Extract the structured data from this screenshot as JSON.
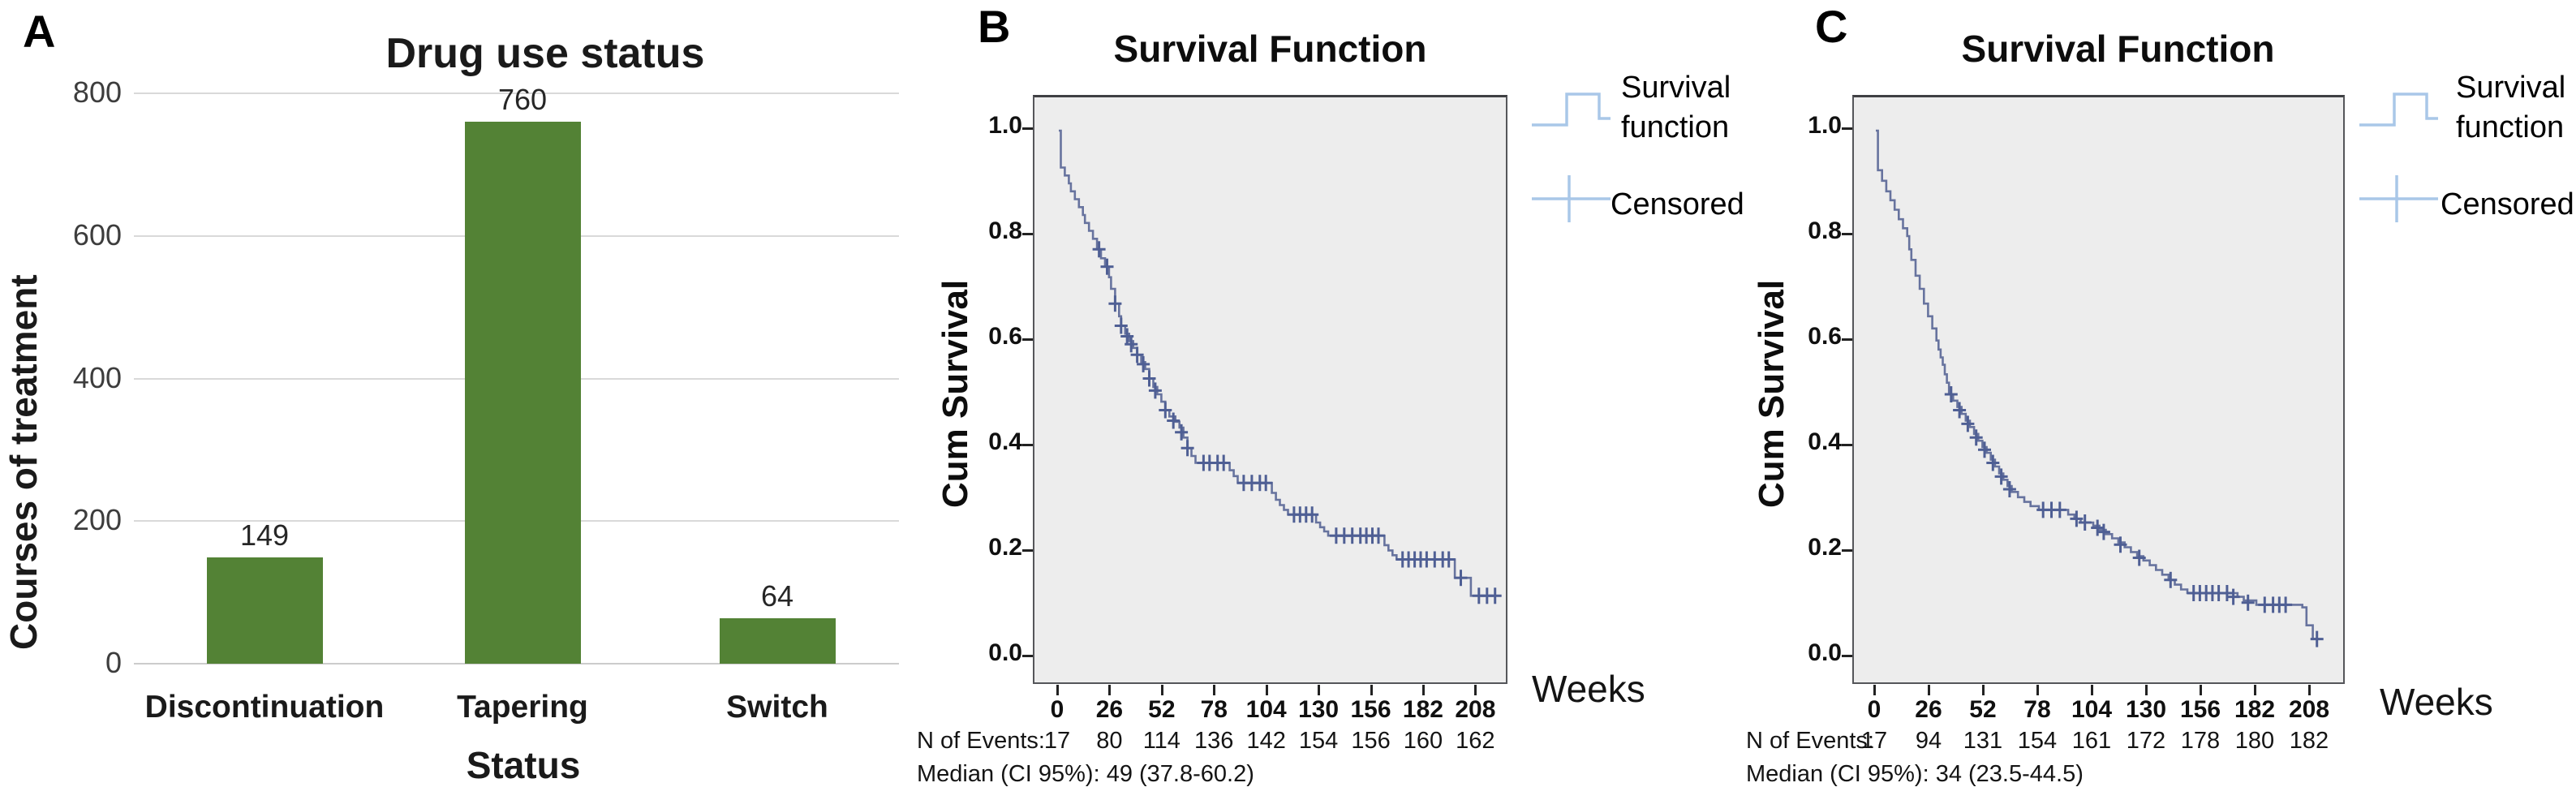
{
  "colors": {
    "bar": "#538235",
    "grid": "#d9d9d9",
    "plot_bg": "#ededed",
    "plot_border": "#55565a",
    "curve": "#67739e",
    "censor": "#4f5f94",
    "legend_icon": "#a9c7e8"
  },
  "panel_a": {
    "label": "A",
    "title": "Drug use status",
    "y_axis_label": "Courses of treatment",
    "x_axis_label": "Status"
  },
  "panel_b": {
    "label": "B",
    "title": "Survival Function",
    "y_axis_label": "Cum Survival",
    "x_axis_label": "Weeks",
    "legend_survival": "Survival function",
    "legend_censored": "Censored",
    "n_of_events_label": "N of Events:",
    "median_label": "Median (CI 95%): 49 (37.8-60.2)"
  },
  "panel_c": {
    "label": "C",
    "title": "Survival Function",
    "y_axis_label": "Cum Survival",
    "x_axis_label": "Weeks",
    "legend_survival": "Survival function",
    "legend_censored": "Censored",
    "n_of_events_label": "N of Events:",
    "median_label": "Median (CI 95%): 34 (23.5-44.5)"
  },
  "chart_data": [
    {
      "type": "bar",
      "panel": "A",
      "title": "Drug use status",
      "xlabel": "Status",
      "ylabel": "Courses of treatment",
      "categories": [
        "Discontinuation",
        "Tapering",
        "Switch"
      ],
      "values": [
        149,
        760,
        64
      ],
      "y_ticks": [
        800,
        600,
        400,
        200,
        0
      ],
      "ylim": [
        0,
        800
      ],
      "grid": true,
      "legend": false
    },
    {
      "type": "line",
      "subtype": "kaplan-meier-step",
      "panel": "B",
      "title": "Survival Function",
      "xlabel": "Weeks",
      "ylabel": "Cum Survival",
      "xlim": [
        0,
        224
      ],
      "ylim": [
        0.0,
        1.05
      ],
      "x_ticks": [
        0,
        26,
        52,
        78,
        104,
        130,
        156,
        182,
        208
      ],
      "y_ticks": [
        "1.0",
        "0.8",
        "0.6",
        "0.4",
        "0.2",
        "0.0"
      ],
      "legend_entries": [
        "Survival function",
        "Censored"
      ],
      "legend_position": "right",
      "n_of_events": [
        17,
        80,
        114,
        136,
        142,
        154,
        156,
        160,
        162
      ],
      "median_weeks": 49,
      "median_ci95": "37.8-60.2",
      "steps": [
        [
          0,
          1.0
        ],
        [
          1,
          0.93
        ],
        [
          3,
          0.915
        ],
        [
          5,
          0.9
        ],
        [
          6,
          0.885
        ],
        [
          8,
          0.87
        ],
        [
          10,
          0.855
        ],
        [
          12,
          0.84
        ],
        [
          13,
          0.825
        ],
        [
          15,
          0.81
        ],
        [
          17,
          0.795
        ],
        [
          19,
          0.775
        ],
        [
          21,
          0.758
        ],
        [
          23,
          0.742
        ],
        [
          25,
          0.722
        ],
        [
          26,
          0.7
        ],
        [
          28,
          0.672
        ],
        [
          30,
          0.648
        ],
        [
          31,
          0.63
        ],
        [
          33,
          0.615
        ],
        [
          35,
          0.601
        ],
        [
          37,
          0.588
        ],
        [
          39,
          0.575
        ],
        [
          41,
          0.561
        ],
        [
          43,
          0.548
        ],
        [
          45,
          0.53
        ],
        [
          47,
          0.514
        ],
        [
          49,
          0.5
        ],
        [
          51,
          0.486
        ],
        [
          53,
          0.47
        ],
        [
          55,
          0.458
        ],
        [
          58,
          0.448
        ],
        [
          60,
          0.437
        ],
        [
          62,
          0.418
        ],
        [
          64,
          0.398
        ],
        [
          66,
          0.383
        ],
        [
          68,
          0.37
        ],
        [
          85,
          0.356
        ],
        [
          87,
          0.345
        ],
        [
          89,
          0.332
        ],
        [
          106,
          0.313
        ],
        [
          108,
          0.3
        ],
        [
          110,
          0.29
        ],
        [
          112,
          0.281
        ],
        [
          114,
          0.272
        ],
        [
          128,
          0.257
        ],
        [
          130,
          0.248
        ],
        [
          132,
          0.24
        ],
        [
          134,
          0.232
        ],
        [
          162,
          0.214
        ],
        [
          164,
          0.204
        ],
        [
          166,
          0.195
        ],
        [
          168,
          0.187
        ],
        [
          197,
          0.152
        ],
        [
          205,
          0.118
        ],
        [
          220,
          0.118
        ]
      ],
      "censored": [
        [
          20,
          0.775
        ],
        [
          24,
          0.742
        ],
        [
          28,
          0.672
        ],
        [
          31,
          0.63
        ],
        [
          34,
          0.61
        ],
        [
          36,
          0.595
        ],
        [
          39,
          0.575
        ],
        [
          42,
          0.557
        ],
        [
          45,
          0.53
        ],
        [
          48,
          0.507
        ],
        [
          53,
          0.47
        ],
        [
          57,
          0.45
        ],
        [
          61,
          0.428
        ],
        [
          64,
          0.398
        ],
        [
          72,
          0.37
        ],
        [
          75,
          0.37
        ],
        [
          79,
          0.37
        ],
        [
          82,
          0.37
        ],
        [
          92,
          0.332
        ],
        [
          96,
          0.332
        ],
        [
          100,
          0.332
        ],
        [
          103,
          0.332
        ],
        [
          117,
          0.272
        ],
        [
          120,
          0.272
        ],
        [
          123,
          0.272
        ],
        [
          126,
          0.272
        ],
        [
          138,
          0.232
        ],
        [
          142,
          0.232
        ],
        [
          146,
          0.232
        ],
        [
          150,
          0.232
        ],
        [
          153,
          0.232
        ],
        [
          156,
          0.232
        ],
        [
          159,
          0.232
        ],
        [
          171,
          0.187
        ],
        [
          174,
          0.187
        ],
        [
          177,
          0.187
        ],
        [
          180,
          0.187
        ],
        [
          183,
          0.187
        ],
        [
          187,
          0.187
        ],
        [
          191,
          0.187
        ],
        [
          194,
          0.187
        ],
        [
          200,
          0.152
        ],
        [
          209,
          0.118
        ],
        [
          213,
          0.118
        ],
        [
          217,
          0.118
        ]
      ]
    },
    {
      "type": "line",
      "subtype": "kaplan-meier-step",
      "panel": "C",
      "title": "Survival Function",
      "xlabel": "Weeks",
      "ylabel": "Cum Survival",
      "xlim": [
        0,
        224
      ],
      "ylim": [
        0.0,
        1.05
      ],
      "x_ticks": [
        0,
        26,
        52,
        78,
        104,
        130,
        156,
        182,
        208
      ],
      "y_ticks": [
        "1.0",
        "0.8",
        "0.6",
        "0.4",
        "0.2",
        "0.0"
      ],
      "legend_entries": [
        "Survival function",
        "Censored"
      ],
      "legend_position": "right",
      "n_of_events": [
        17,
        94,
        131,
        154,
        161,
        172,
        178,
        180,
        182
      ],
      "median_weeks": 34,
      "median_ci95": "23.5-44.5",
      "steps": [
        [
          0,
          1.0
        ],
        [
          1,
          0.925
        ],
        [
          3,
          0.905
        ],
        [
          5,
          0.885
        ],
        [
          7,
          0.868
        ],
        [
          9,
          0.85
        ],
        [
          11,
          0.832
        ],
        [
          13,
          0.815
        ],
        [
          15,
          0.8
        ],
        [
          16,
          0.775
        ],
        [
          17,
          0.755
        ],
        [
          19,
          0.725
        ],
        [
          21,
          0.7
        ],
        [
          23,
          0.672
        ],
        [
          25,
          0.648
        ],
        [
          27,
          0.625
        ],
        [
          29,
          0.602
        ],
        [
          30,
          0.585
        ],
        [
          31,
          0.57
        ],
        [
          32,
          0.556
        ],
        [
          33,
          0.538
        ],
        [
          34,
          0.522
        ],
        [
          35,
          0.5
        ],
        [
          37,
          0.488
        ],
        [
          39,
          0.476
        ],
        [
          41,
          0.463
        ],
        [
          43,
          0.45
        ],
        [
          45,
          0.438
        ],
        [
          47,
          0.425
        ],
        [
          49,
          0.412
        ],
        [
          51,
          0.4
        ],
        [
          53,
          0.389
        ],
        [
          55,
          0.376
        ],
        [
          57,
          0.363
        ],
        [
          59,
          0.35
        ],
        [
          61,
          0.338
        ],
        [
          63,
          0.326
        ],
        [
          65,
          0.315
        ],
        [
          68,
          0.305
        ],
        [
          71,
          0.296
        ],
        [
          74,
          0.288
        ],
        [
          78,
          0.281
        ],
        [
          92,
          0.272
        ],
        [
          95,
          0.264
        ],
        [
          98,
          0.257
        ],
        [
          104,
          0.251
        ],
        [
          107,
          0.243
        ],
        [
          110,
          0.235
        ],
        [
          113,
          0.227
        ],
        [
          116,
          0.219
        ],
        [
          119,
          0.21
        ],
        [
          122,
          0.201
        ],
        [
          125,
          0.193
        ],
        [
          128,
          0.185
        ],
        [
          131,
          0.176
        ],
        [
          134,
          0.167
        ],
        [
          137,
          0.158
        ],
        [
          140,
          0.148
        ],
        [
          143,
          0.139
        ],
        [
          146,
          0.13
        ],
        [
          149,
          0.123
        ],
        [
          173,
          0.116
        ],
        [
          176,
          0.109
        ],
        [
          182,
          0.101
        ],
        [
          204,
          0.096
        ],
        [
          206,
          0.062
        ],
        [
          209,
          0.036
        ],
        [
          212,
          0.036
        ]
      ],
      "censored": [
        [
          36,
          0.5
        ],
        [
          40,
          0.47
        ],
        [
          44,
          0.444
        ],
        [
          48,
          0.418
        ],
        [
          52,
          0.395
        ],
        [
          56,
          0.37
        ],
        [
          60,
          0.344
        ],
        [
          64,
          0.32
        ],
        [
          80,
          0.281
        ],
        [
          84,
          0.281
        ],
        [
          88,
          0.281
        ],
        [
          96,
          0.264
        ],
        [
          100,
          0.257
        ],
        [
          106,
          0.247
        ],
        [
          109,
          0.239
        ],
        [
          117,
          0.215
        ],
        [
          126,
          0.19
        ],
        [
          141,
          0.148
        ],
        [
          152,
          0.123
        ],
        [
          155,
          0.123
        ],
        [
          158,
          0.123
        ],
        [
          161,
          0.123
        ],
        [
          164,
          0.123
        ],
        [
          168,
          0.123
        ],
        [
          171,
          0.116
        ],
        [
          178,
          0.105
        ],
        [
          186,
          0.101
        ],
        [
          190,
          0.101
        ],
        [
          193,
          0.101
        ],
        [
          196,
          0.101
        ],
        [
          211,
          0.036
        ]
      ]
    }
  ]
}
